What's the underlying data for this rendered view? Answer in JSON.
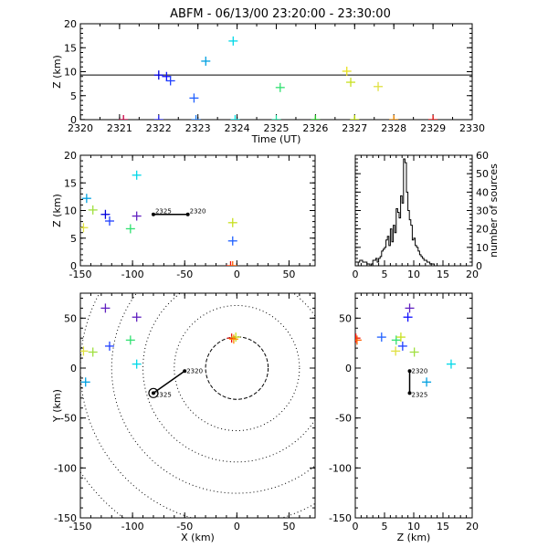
{
  "title": "ABFM - 06/13/00 23:20:00 - 23:30:00",
  "chart_data": [
    {
      "id": "time_height",
      "type": "scatter",
      "xlabel": "Time (UT)",
      "ylabel": "Z (km)",
      "xlim": [
        2320,
        2330
      ],
      "ylim": [
        0,
        20
      ],
      "xticks": [
        "2320",
        "2321",
        "2322",
        "2323",
        "2324",
        "2325",
        "2326",
        "2327",
        "2328",
        "2329",
        "2330"
      ],
      "yticks": [
        "0",
        "5",
        "10",
        "15",
        "20"
      ],
      "reference_line_z": 9.3,
      "points": [
        {
          "x": 2320.0,
          "y": 0.0,
          "color": "#000000"
        },
        {
          "x": 2321.1,
          "y": 0.0,
          "color": "#cc0044"
        },
        {
          "x": 2322.0,
          "y": 9.3,
          "color": "#0000dd"
        },
        {
          "x": 2322.2,
          "y": 9.0,
          "color": "#1010ff"
        },
        {
          "x": 2322.3,
          "y": 8.1,
          "color": "#2040ff"
        },
        {
          "x": 2322.0,
          "y": 0.0,
          "color": "#3030ff"
        },
        {
          "x": 2322.9,
          "y": 4.5,
          "color": "#2060ff"
        },
        {
          "x": 2322.95,
          "y": 0.0,
          "color": "#2080ff"
        },
        {
          "x": 2323.2,
          "y": 12.2,
          "color": "#00a0e0"
        },
        {
          "x": 2323.9,
          "y": 16.4,
          "color": "#00d8e8"
        },
        {
          "x": 2323.95,
          "y": 0.0,
          "color": "#00e0e0"
        },
        {
          "x": 2325.0,
          "y": 0.0,
          "color": "#20e0a0"
        },
        {
          "x": 2325.1,
          "y": 6.7,
          "color": "#30e070"
        },
        {
          "x": 2326.0,
          "y": 0.0,
          "color": "#20cc20"
        },
        {
          "x": 2326.8,
          "y": 10.1,
          "color": "#e8e020"
        },
        {
          "x": 2326.9,
          "y": 7.8,
          "color": "#c8e020"
        },
        {
          "x": 2327.0,
          "y": 0.0,
          "color": "#c0e000"
        },
        {
          "x": 2327.6,
          "y": 6.9,
          "color": "#e0e040"
        },
        {
          "x": 2328.0,
          "y": 0.0,
          "color": "#ff9000"
        },
        {
          "x": 2329.0,
          "y": 0.0,
          "color": "#ee1010"
        }
      ]
    },
    {
      "id": "x_height",
      "type": "scatter",
      "xlabel": "",
      "ylabel": "Z (km)",
      "xlim": [
        -150,
        75
      ],
      "ylim": [
        0,
        20
      ],
      "xticks": [
        "-150",
        "-100",
        "-50",
        "0",
        "50"
      ],
      "yticks": [
        "0",
        "5",
        "10",
        "15",
        "20"
      ],
      "track_labels": [
        "2325",
        "2320"
      ],
      "track": {
        "x1": -80,
        "y1": 9.3,
        "x2": -47,
        "y2": 9.3
      },
      "points": [
        {
          "x": -147,
          "y": 6.9,
          "color": "#e0e040"
        },
        {
          "x": -144,
          "y": 12.2,
          "color": "#00a0e0"
        },
        {
          "x": -138,
          "y": 10.1,
          "color": "#a0e040"
        },
        {
          "x": -126,
          "y": 9.3,
          "color": "#0000dd"
        },
        {
          "x": -122,
          "y": 8.1,
          "color": "#2040ff"
        },
        {
          "x": -102,
          "y": 6.7,
          "color": "#30e070"
        },
        {
          "x": -96,
          "y": 16.4,
          "color": "#00d8e8"
        },
        {
          "x": -96,
          "y": 9.0,
          "color": "#6020c0"
        },
        {
          "x": -4,
          "y": 7.8,
          "color": "#c8e020"
        },
        {
          "x": -4,
          "y": 4.5,
          "color": "#2060ff"
        },
        {
          "x": -6,
          "y": 0.0,
          "color": "#ee1010"
        },
        {
          "x": -4,
          "y": 0.0,
          "color": "#ff6000"
        }
      ]
    },
    {
      "id": "height_histogram",
      "type": "bar",
      "xlabel": "",
      "ylabel": "number of sources",
      "xlim": [
        0,
        20
      ],
      "ylim": [
        0,
        60
      ],
      "xticks": [
        "0",
        "5",
        "10",
        "15",
        "20"
      ],
      "yticks": [
        "0",
        "10",
        "20",
        "30",
        "40",
        "50",
        "60"
      ],
      "bin_width": 0.25,
      "bin_start": 0,
      "counts": [
        0,
        0,
        2,
        3,
        3,
        2,
        2,
        2,
        1,
        1,
        0,
        1,
        3,
        3,
        4,
        2,
        4,
        5,
        8,
        9,
        10,
        14,
        16,
        11,
        20,
        13,
        22,
        18,
        31,
        29,
        26,
        38,
        34,
        58,
        56,
        40,
        30,
        25,
        22,
        14,
        15,
        11,
        10,
        8,
        6,
        5,
        4,
        3,
        3,
        2,
        2,
        1,
        1,
        1,
        0,
        0,
        0,
        0,
        0,
        0,
        0,
        0,
        0,
        0,
        0,
        0,
        0,
        0,
        0,
        0,
        0,
        0,
        0,
        0,
        0,
        0,
        0,
        0,
        0,
        0
      ]
    },
    {
      "id": "plan_view",
      "type": "scatter",
      "xlabel": "X (km)",
      "ylabel": "Y (km)",
      "xlim": [
        -150,
        75
      ],
      "ylim": [
        -150,
        75
      ],
      "xticks": [
        "-150",
        "-100",
        "-50",
        "0",
        "50"
      ],
      "yticks": [
        "-150",
        "-100",
        "-50",
        "0",
        "50"
      ],
      "range_rings_km": [
        30,
        60,
        90,
        120,
        150,
        180
      ],
      "track_labels": [
        "2320",
        "2325"
      ],
      "track": {
        "x1": -50,
        "y1": -3,
        "x2": -80,
        "y2": -25
      },
      "points": [
        {
          "x": -147,
          "y": 17,
          "color": "#e0e040"
        },
        {
          "x": -145,
          "y": -14,
          "color": "#00a0e0"
        },
        {
          "x": -138,
          "y": 16,
          "color": "#a0e040"
        },
        {
          "x": -126,
          "y": 60,
          "color": "#6020c0"
        },
        {
          "x": -122,
          "y": 22,
          "color": "#2040ff"
        },
        {
          "x": -102,
          "y": 28,
          "color": "#30e070"
        },
        {
          "x": -96,
          "y": 51,
          "color": "#6020c0"
        },
        {
          "x": -96,
          "y": 4,
          "color": "#00d8e8"
        },
        {
          "x": -5,
          "y": 30,
          "color": "#ee1010"
        },
        {
          "x": -1,
          "y": 31,
          "color": "#c8e020"
        },
        {
          "x": -3,
          "y": 29,
          "color": "#ff9000"
        }
      ]
    },
    {
      "id": "height_y",
      "type": "scatter",
      "xlabel": "Z (km)",
      "ylabel": "",
      "xlim": [
        0,
        20
      ],
      "ylim": [
        -150,
        75
      ],
      "xticks": [
        "0",
        "5",
        "10",
        "15",
        "20"
      ],
      "yticks": [
        "-150",
        "-100",
        "-50",
        "0",
        "50"
      ],
      "track_labels": [
        "2320",
        "2325"
      ],
      "track": {
        "x1": 9.3,
        "y1": -3,
        "x2": 9.3,
        "y2": -25
      },
      "points": [
        {
          "x": 0.1,
          "y": 30,
          "color": "#ee1010"
        },
        {
          "x": 0.3,
          "y": 28,
          "color": "#ff6000"
        },
        {
          "x": 4.5,
          "y": 31,
          "color": "#2060ff"
        },
        {
          "x": 6.9,
          "y": 17,
          "color": "#e0e040"
        },
        {
          "x": 7.0,
          "y": 28,
          "color": "#30e070"
        },
        {
          "x": 7.8,
          "y": 31,
          "color": "#c8e020"
        },
        {
          "x": 8.1,
          "y": 22,
          "color": "#2040ff"
        },
        {
          "x": 9.0,
          "y": 51,
          "color": "#1010ff"
        },
        {
          "x": 9.3,
          "y": 60,
          "color": "#6020c0"
        },
        {
          "x": 10.1,
          "y": 16,
          "color": "#a0e040"
        },
        {
          "x": 12.2,
          "y": -14,
          "color": "#00a0e0"
        },
        {
          "x": 16.4,
          "y": 4,
          "color": "#00d8e8"
        }
      ]
    }
  ]
}
